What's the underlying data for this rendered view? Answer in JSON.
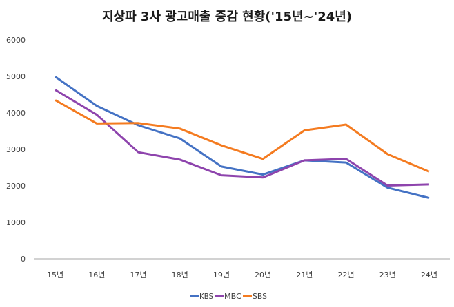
{
  "chart_data": {
    "type": "line",
    "title": "지상파 3사 광고매출 증감 현황('15년~'24년)",
    "xlabel": "",
    "ylabel": "",
    "categories": [
      "15년",
      "16년",
      "17년",
      "18년",
      "19년",
      "20년",
      "21년",
      "22년",
      "23년",
      "24년"
    ],
    "ylim": [
      0,
      6000
    ],
    "yticks": [
      "0",
      "1000",
      "2000",
      "3000",
      "4000",
      "5000",
      "6000"
    ],
    "ytick_values": [
      0,
      1000,
      2000,
      3000,
      4000,
      5000,
      6000
    ],
    "grid": false,
    "legend_position": "bottom",
    "series": [
      {
        "name": "KBS",
        "color": "#4472C4",
        "values": [
          4990,
          4190,
          3660,
          3300,
          2530,
          2310,
          2700,
          2640,
          1950,
          1670
        ]
      },
      {
        "name": "MBC",
        "color": "#8E44AD",
        "values": [
          4630,
          3950,
          2920,
          2720,
          2290,
          2230,
          2700,
          2740,
          2010,
          2040
        ]
      },
      {
        "name": "SBS",
        "color": "#F47B20",
        "values": [
          4350,
          3710,
          3720,
          3570,
          3110,
          2740,
          3520,
          3680,
          2870,
          2390
        ]
      }
    ]
  }
}
